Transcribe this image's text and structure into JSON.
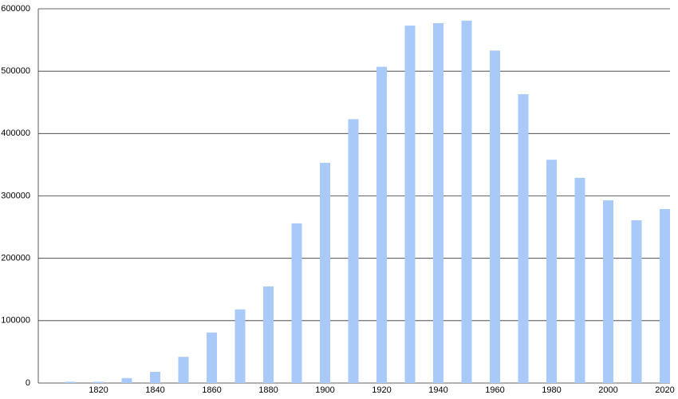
{
  "chart_data": {
    "type": "bar",
    "categories": [
      null,
      "1820",
      null,
      "1840",
      null,
      "1860",
      null,
      "1880",
      null,
      "1900",
      null,
      "1920",
      null,
      "1940",
      null,
      "1960",
      null,
      "1980",
      null,
      "2000",
      null,
      "2020"
    ],
    "values": [
      2000,
      2000,
      8000,
      18000,
      42000,
      81000,
      118000,
      155000,
      256000,
      353000,
      423000,
      507000,
      573000,
      577000,
      581000,
      533000,
      463000,
      358000,
      329000,
      293000,
      261000,
      279000
    ],
    "color": "#a9c9f9",
    "ylim": [
      0,
      600000
    ],
    "yticks": [
      0,
      100000,
      200000,
      300000,
      400000,
      500000,
      600000
    ],
    "grid": true
  }
}
